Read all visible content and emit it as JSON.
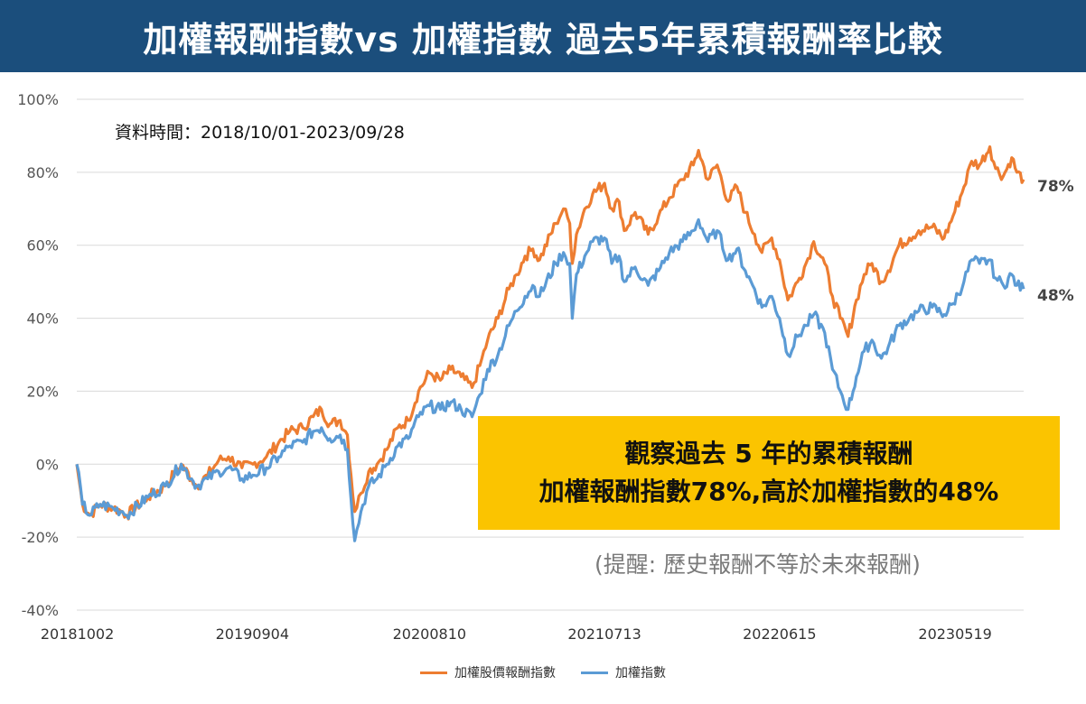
{
  "header": {
    "title": "加權報酬指數vs 加權指數 過去5年累積報酬率比較"
  },
  "note": {
    "date_range": "資料時間：2018/10/01-2023/09/28"
  },
  "callout": {
    "line1": "觀察過去 5 年的累積報酬",
    "line2": "加權報酬指數78%,高於加權指數的48%"
  },
  "reminder": "(提醒: 歷史報酬不等於未來報酬)",
  "colors": {
    "series_return_index": "#ed7d31",
    "series_price_index": "#5b9bd5",
    "grid": "#d9d9d9",
    "title_bg": "#1b4e7c",
    "callout_bg": "#fbc400"
  },
  "chart_data": {
    "type": "line",
    "title": "",
    "xlabel": "",
    "ylabel": "",
    "ylim": [
      -40,
      100
    ],
    "grid": true,
    "legend_position": "bottom",
    "y_ticks": [
      "-40%",
      "-20%",
      "0%",
      "20%",
      "40%",
      "60%",
      "80%",
      "100%"
    ],
    "x_tick_labels": [
      "20181002",
      "20190904",
      "20200810",
      "20210713",
      "20220615",
      "20230519"
    ],
    "x_start": "2018-10-01",
    "x_end": "2023-09-28",
    "x_ticks_at": [
      "2018-10-02",
      "2019-09-04",
      "2020-08-10",
      "2021-07-13",
      "2022-06-15",
      "2023-05-19"
    ],
    "end_labels": [
      "78%",
      "48%"
    ],
    "series": [
      {
        "name": "加權股價報酬指數",
        "points": [
          [
            "2018-10-01",
            0
          ],
          [
            "2018-10-12",
            -11
          ],
          [
            "2018-10-26",
            -14
          ],
          [
            "2018-11-15",
            -11
          ],
          [
            "2018-12-10",
            -12
          ],
          [
            "2018-12-28",
            -13
          ],
          [
            "2019-01-05",
            -14
          ],
          [
            "2019-02-15",
            -9
          ],
          [
            "2019-03-20",
            -6
          ],
          [
            "2019-04-20",
            0
          ],
          [
            "2019-05-10",
            -4
          ],
          [
            "2019-05-20",
            -6
          ],
          [
            "2019-06-10",
            -3
          ],
          [
            "2019-07-01",
            1
          ],
          [
            "2019-07-20",
            2
          ],
          [
            "2019-08-15",
            -1
          ],
          [
            "2019-09-05",
            0
          ],
          [
            "2019-10-01",
            2
          ],
          [
            "2019-10-25",
            6
          ],
          [
            "2019-11-15",
            9
          ],
          [
            "2019-12-10",
            10
          ],
          [
            "2019-12-30",
            13
          ],
          [
            "2020-01-15",
            15
          ],
          [
            "2020-01-31",
            11
          ],
          [
            "2020-02-20",
            12
          ],
          [
            "2020-03-05",
            8
          ],
          [
            "2020-03-19",
            -13
          ],
          [
            "2020-03-31",
            -8
          ],
          [
            "2020-04-15",
            -2
          ],
          [
            "2020-05-01",
            0
          ],
          [
            "2020-05-20",
            4
          ],
          [
            "2020-06-10",
            10
          ],
          [
            "2020-06-30",
            12
          ],
          [
            "2020-07-20",
            20
          ],
          [
            "2020-08-10",
            25
          ],
          [
            "2020-08-31",
            23
          ],
          [
            "2020-09-20",
            26
          ],
          [
            "2020-10-10",
            24
          ],
          [
            "2020-10-31",
            21
          ],
          [
            "2020-11-15",
            27
          ],
          [
            "2020-11-30",
            34
          ],
          [
            "2020-12-20",
            40
          ],
          [
            "2021-01-10",
            48
          ],
          [
            "2021-01-25",
            52
          ],
          [
            "2021-02-10",
            57
          ],
          [
            "2021-02-25",
            59
          ],
          [
            "2021-03-10",
            56
          ],
          [
            "2021-04-10",
            66
          ],
          [
            "2021-04-25",
            70
          ],
          [
            "2021-05-07",
            66
          ],
          [
            "2021-05-12",
            55
          ],
          [
            "2021-05-20",
            63
          ],
          [
            "2021-06-05",
            70
          ],
          [
            "2021-06-20",
            74
          ],
          [
            "2021-07-13",
            77
          ],
          [
            "2021-07-27",
            70
          ],
          [
            "2021-08-10",
            72
          ],
          [
            "2021-08-20",
            64
          ],
          [
            "2021-09-10",
            69
          ],
          [
            "2021-10-05",
            63
          ],
          [
            "2021-10-25",
            68
          ],
          [
            "2021-11-15",
            73
          ],
          [
            "2021-12-10",
            78
          ],
          [
            "2021-12-31",
            82
          ],
          [
            "2022-01-10",
            86
          ],
          [
            "2022-01-28",
            78
          ],
          [
            "2022-02-15",
            82
          ],
          [
            "2022-03-08",
            72
          ],
          [
            "2022-03-25",
            76
          ],
          [
            "2022-04-10",
            69
          ],
          [
            "2022-04-28",
            63
          ],
          [
            "2022-05-12",
            58
          ],
          [
            "2022-05-31",
            62
          ],
          [
            "2022-06-15",
            56
          ],
          [
            "2022-07-01",
            45
          ],
          [
            "2022-07-20",
            50
          ],
          [
            "2022-08-05",
            55
          ],
          [
            "2022-08-20",
            61
          ],
          [
            "2022-09-10",
            55
          ],
          [
            "2022-09-25",
            46
          ],
          [
            "2022-10-10",
            40
          ],
          [
            "2022-10-25",
            35
          ],
          [
            "2022-11-10",
            45
          ],
          [
            "2022-11-25",
            52
          ],
          [
            "2022-12-10",
            55
          ],
          [
            "2022-12-28",
            50
          ],
          [
            "2023-01-10",
            53
          ],
          [
            "2023-01-31",
            60
          ],
          [
            "2023-02-20",
            62
          ],
          [
            "2023-03-10",
            64
          ],
          [
            "2023-04-05",
            65
          ],
          [
            "2023-04-28",
            62
          ],
          [
            "2023-05-15",
            68
          ],
          [
            "2023-06-05",
            76
          ],
          [
            "2023-06-20",
            83
          ],
          [
            "2023-07-05",
            82
          ],
          [
            "2023-07-25",
            87
          ],
          [
            "2023-08-05",
            81
          ],
          [
            "2023-08-20",
            79
          ],
          [
            "2023-09-05",
            84
          ],
          [
            "2023-09-15",
            80
          ],
          [
            "2023-09-28",
            78
          ]
        ]
      },
      {
        "name": "加權指數",
        "points": [
          [
            "2018-10-01",
            0
          ],
          [
            "2018-10-12",
            -11
          ],
          [
            "2018-10-26",
            -14
          ],
          [
            "2018-11-15",
            -11
          ],
          [
            "2018-12-10",
            -12
          ],
          [
            "2018-12-28",
            -13
          ],
          [
            "2019-01-05",
            -14
          ],
          [
            "2019-02-15",
            -9
          ],
          [
            "2019-03-20",
            -6
          ],
          [
            "2019-04-20",
            0
          ],
          [
            "2019-05-10",
            -4
          ],
          [
            "2019-05-20",
            -6
          ],
          [
            "2019-06-10",
            -4
          ],
          [
            "2019-07-01",
            -2
          ],
          [
            "2019-07-20",
            -1
          ],
          [
            "2019-08-15",
            -4
          ],
          [
            "2019-09-05",
            -3
          ],
          [
            "2019-10-01",
            -1
          ],
          [
            "2019-10-25",
            2
          ],
          [
            "2019-11-15",
            5
          ],
          [
            "2019-12-10",
            6
          ],
          [
            "2019-12-30",
            9
          ],
          [
            "2020-01-15",
            10
          ],
          [
            "2020-01-31",
            7
          ],
          [
            "2020-02-20",
            8
          ],
          [
            "2020-03-05",
            4
          ],
          [
            "2020-03-19",
            -21
          ],
          [
            "2020-03-31",
            -13
          ],
          [
            "2020-04-15",
            -6
          ],
          [
            "2020-05-01",
            -4
          ],
          [
            "2020-05-20",
            0
          ],
          [
            "2020-06-10",
            5
          ],
          [
            "2020-06-30",
            7
          ],
          [
            "2020-07-20",
            13
          ],
          [
            "2020-08-10",
            16
          ],
          [
            "2020-08-31",
            15
          ],
          [
            "2020-09-20",
            17
          ],
          [
            "2020-10-10",
            15
          ],
          [
            "2020-10-31",
            13
          ],
          [
            "2020-11-15",
            19
          ],
          [
            "2020-11-30",
            26
          ],
          [
            "2020-12-20",
            30
          ],
          [
            "2021-01-10",
            38
          ],
          [
            "2021-01-25",
            42
          ],
          [
            "2021-02-10",
            46
          ],
          [
            "2021-02-25",
            49
          ],
          [
            "2021-03-10",
            46
          ],
          [
            "2021-04-10",
            55
          ],
          [
            "2021-04-25",
            58
          ],
          [
            "2021-05-07",
            55
          ],
          [
            "2021-05-12",
            40
          ],
          [
            "2021-05-20",
            52
          ],
          [
            "2021-06-05",
            57
          ],
          [
            "2021-06-20",
            61
          ],
          [
            "2021-07-13",
            62
          ],
          [
            "2021-07-27",
            55
          ],
          [
            "2021-08-10",
            57
          ],
          [
            "2021-08-20",
            50
          ],
          [
            "2021-09-10",
            54
          ],
          [
            "2021-10-05",
            49
          ],
          [
            "2021-10-25",
            53
          ],
          [
            "2021-11-15",
            58
          ],
          [
            "2021-12-10",
            61
          ],
          [
            "2021-12-31",
            64
          ],
          [
            "2022-01-10",
            67
          ],
          [
            "2022-01-28",
            61
          ],
          [
            "2022-02-15",
            64
          ],
          [
            "2022-03-08",
            56
          ],
          [
            "2022-03-25",
            59
          ],
          [
            "2022-04-10",
            53
          ],
          [
            "2022-04-28",
            48
          ],
          [
            "2022-05-12",
            43
          ],
          [
            "2022-05-31",
            46
          ],
          [
            "2022-06-15",
            40
          ],
          [
            "2022-07-01",
            30
          ],
          [
            "2022-07-20",
            35
          ],
          [
            "2022-08-05",
            38
          ],
          [
            "2022-08-20",
            41
          ],
          [
            "2022-09-10",
            36
          ],
          [
            "2022-09-25",
            26
          ],
          [
            "2022-10-10",
            20
          ],
          [
            "2022-10-25",
            15
          ],
          [
            "2022-11-10",
            24
          ],
          [
            "2022-11-25",
            31
          ],
          [
            "2022-12-10",
            34
          ],
          [
            "2022-12-28",
            29
          ],
          [
            "2023-01-10",
            32
          ],
          [
            "2023-01-31",
            38
          ],
          [
            "2023-02-20",
            40
          ],
          [
            "2023-03-10",
            42
          ],
          [
            "2023-04-05",
            43
          ],
          [
            "2023-04-28",
            41
          ],
          [
            "2023-05-15",
            44
          ],
          [
            "2023-06-05",
            50
          ],
          [
            "2023-06-20",
            56
          ],
          [
            "2023-07-05",
            55
          ],
          [
            "2023-07-25",
            56
          ],
          [
            "2023-08-05",
            51
          ],
          [
            "2023-08-20",
            49
          ],
          [
            "2023-09-05",
            52
          ],
          [
            "2023-09-15",
            49
          ],
          [
            "2023-09-28",
            48
          ]
        ]
      }
    ]
  }
}
